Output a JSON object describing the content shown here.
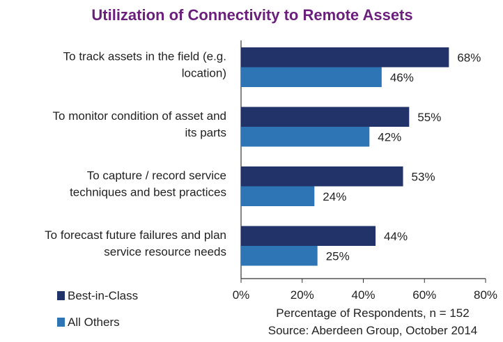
{
  "chart_data": {
    "type": "bar",
    "orientation": "horizontal",
    "title": "Utilization of Connectivity to Remote Assets",
    "categories": [
      [
        "To track assets in the field (e.g.",
        "location)"
      ],
      [
        "To monitor condition of asset and",
        "its parts"
      ],
      [
        "To capture / record service",
        "techniques and best practices"
      ],
      [
        "To forecast future failures and plan",
        "service resource needs"
      ]
    ],
    "series": [
      {
        "name": "Best-in-Class",
        "values": [
          68,
          55,
          53,
          44
        ],
        "color": "#22336a"
      },
      {
        "name": "All Others",
        "values": [
          46,
          42,
          24,
          25
        ],
        "color": "#2e75b6"
      }
    ],
    "xlim": [
      0,
      80
    ],
    "xticks": [
      0,
      20,
      40,
      60,
      80
    ],
    "tick_format": "%",
    "xlabel": "Percentage of Respondents, n = 152",
    "source": "Source: Aberdeen Group, October 2014",
    "legend_position": "bottom-left",
    "grid": false,
    "title_color": "#6b1f7c"
  }
}
